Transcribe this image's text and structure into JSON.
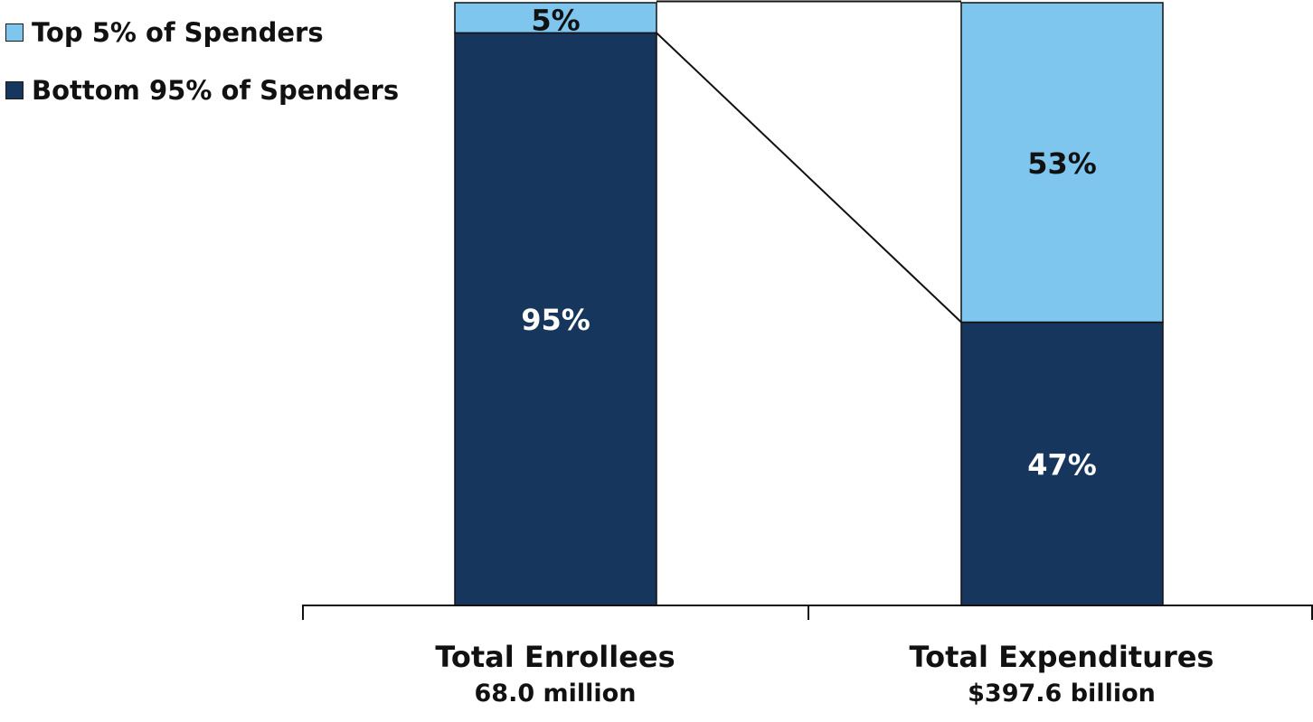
{
  "chart_data": {
    "type": "bar",
    "stacked": true,
    "percent_stacked": true,
    "categories": [
      "Total Enrollees",
      "Total Expenditures"
    ],
    "category_subtitles": [
      "68.0 million",
      "$397.6 billion"
    ],
    "series": [
      {
        "name": "Bottom 95% of Spenders",
        "values": [
          95,
          47
        ],
        "color": "#17365d",
        "label_color": "#ffffff"
      },
      {
        "name": "Top 5% of Spenders",
        "values": [
          5,
          53
        ],
        "color": "#7fc6ef",
        "label_color": "#111111"
      }
    ],
    "data_labels": [
      [
        "95%",
        "47%"
      ],
      [
        "5%",
        "53%"
      ]
    ],
    "ylim": [
      0,
      100
    ],
    "grid": false,
    "legend": "top-left",
    "connector_line": true
  }
}
